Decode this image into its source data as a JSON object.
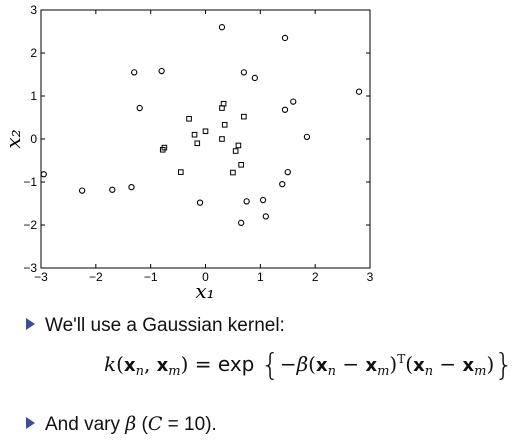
{
  "chart_data": {
    "type": "scatter",
    "xlabel": "x₁",
    "ylabel": "x₂",
    "xlim": [
      -3,
      3
    ],
    "ylim": [
      -3,
      3
    ],
    "xticks": [
      "−3",
      "−2",
      "−1",
      "0",
      "1",
      "2",
      "3"
    ],
    "yticks": [
      "−3",
      "−2",
      "−1",
      "0",
      "1",
      "2",
      "3"
    ],
    "grid": false,
    "legend": "none",
    "series": [
      {
        "marker": "circle",
        "x": [
          0.3,
          1.45,
          -1.3,
          -0.8,
          0.7,
          0.9,
          2.8,
          -1.2,
          1.6,
          1.45,
          1.85,
          -2.95,
          -2.25,
          -1.7,
          -1.35,
          1.5,
          1.4,
          -0.1,
          0.75,
          1.05,
          1.1,
          0.65
        ],
        "y": [
          2.6,
          2.35,
          1.55,
          1.58,
          1.55,
          1.42,
          1.1,
          0.72,
          0.87,
          0.68,
          0.05,
          -0.82,
          -1.2,
          -1.18,
          -1.12,
          -0.77,
          -1.05,
          -1.48,
          -1.45,
          -1.42,
          -1.8,
          -1.95
        ]
      },
      {
        "marker": "square",
        "x": [
          0.33,
          0.3,
          0.7,
          -0.3,
          0.35,
          -0.2,
          0.0,
          -0.75,
          -0.78,
          0.3,
          -0.15,
          0.6,
          0.55,
          0.65,
          -0.45,
          0.5
        ],
        "y": [
          0.82,
          0.72,
          0.52,
          0.47,
          0.33,
          0.1,
          0.18,
          -0.2,
          -0.25,
          0.0,
          -0.1,
          -0.15,
          -0.28,
          -0.6,
          -0.77,
          -0.78
        ]
      }
    ]
  },
  "bullets": [
    {
      "text": "We'll use a Gaussian kernel:"
    },
    {
      "text_prefix": "And vary ",
      "beta": "β",
      "text_mid": " (",
      "c_var": "C",
      "text_suffix": " = 10)."
    }
  ],
  "formula": {
    "lhs_fn": "k",
    "x": "x",
    "n": "n",
    "m": "m",
    "eq": " = exp ",
    "beta": "β",
    "transpose": "T"
  },
  "colors": {
    "axis": "#000000",
    "marker": "#000000",
    "bullet": "#3c4e9a"
  }
}
